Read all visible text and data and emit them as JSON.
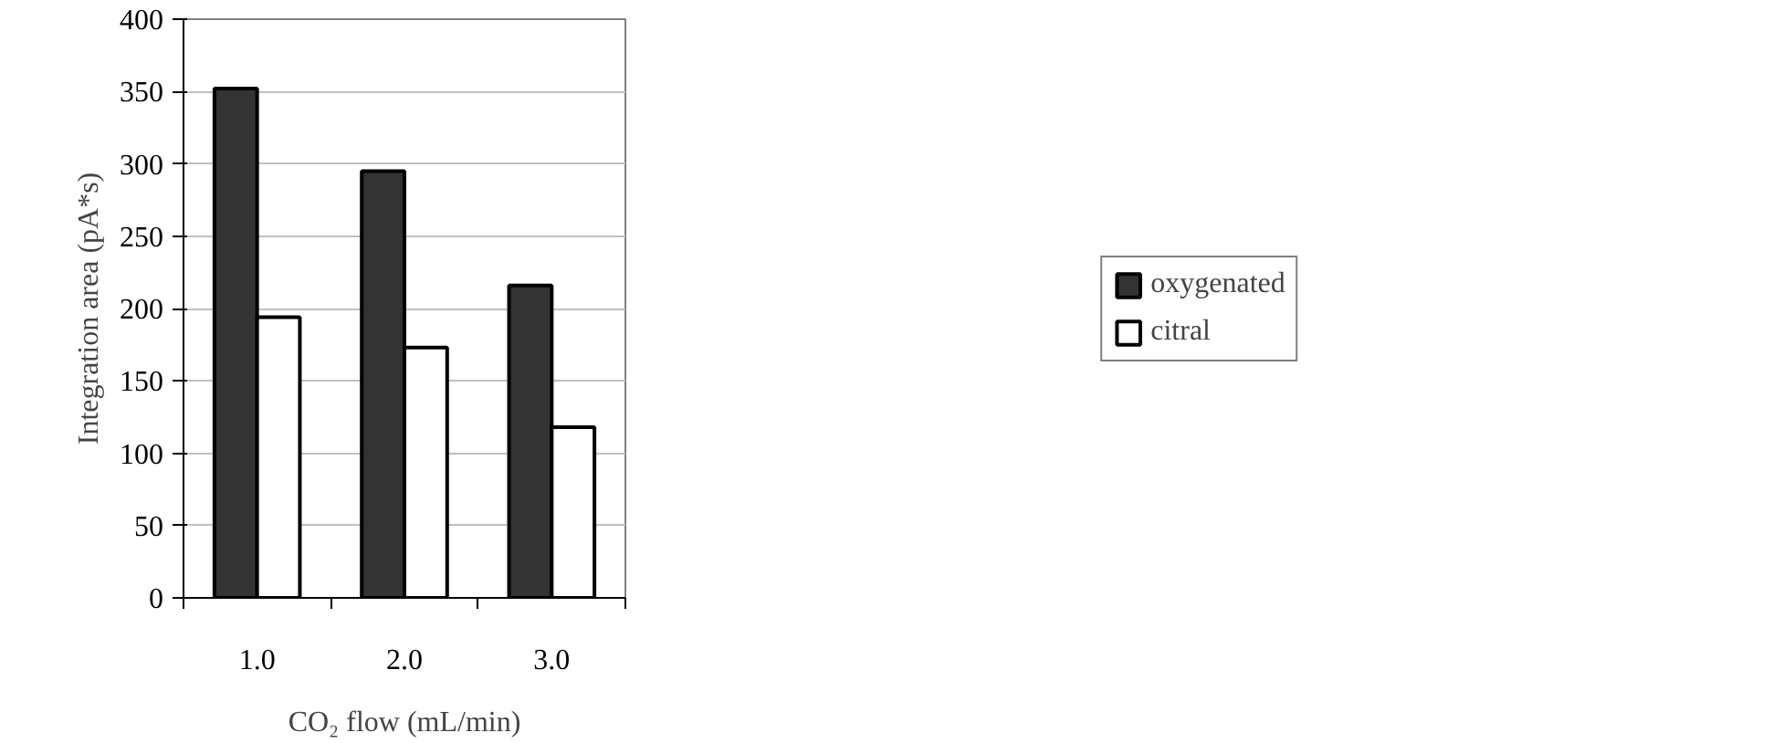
{
  "chart_data": {
    "type": "bar",
    "xlabel": "CO₂ flow (mL/min)",
    "ylabel": "Integration area (pA*s)",
    "categories": [
      "1.0",
      "2.0",
      "3.0"
    ],
    "series": [
      {
        "name": "oxygenated",
        "color": "#333333",
        "values": [
          352,
          295,
          216
        ]
      },
      {
        "name": "citral",
        "color": "#ffffff",
        "values": [
          194,
          173,
          118
        ]
      }
    ],
    "ylim": [
      0,
      400
    ],
    "yticks": [
      0,
      50,
      100,
      150,
      200,
      250,
      300,
      350,
      400
    ],
    "grid": "y",
    "legend": "right"
  }
}
